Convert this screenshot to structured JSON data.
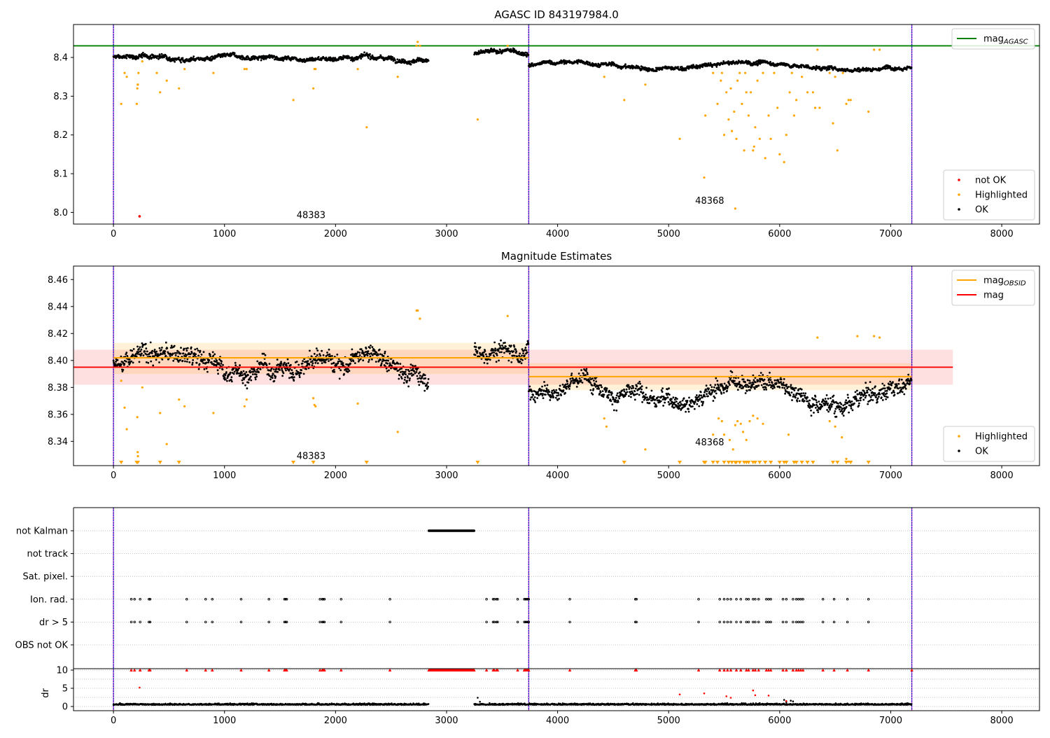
{
  "chart_data": [
    {
      "type": "scatter",
      "title": "AGASC ID 843197984.0",
      "xlim": [
        -360,
        8340
      ],
      "ylim": [
        7.97,
        8.485
      ],
      "xticks": [
        0,
        1000,
        2000,
        3000,
        4000,
        5000,
        6000,
        7000,
        8000
      ],
      "yticks": [
        8.0,
        8.1,
        8.2,
        8.3,
        8.4
      ],
      "obs_boundaries": [
        0,
        3740,
        7190
      ],
      "obsid_labels": [
        {
          "text": "48383",
          "x": 1870,
          "y": 7.985
        },
        {
          "text": "48368",
          "x": 5460,
          "y": 8.022
        }
      ],
      "hlines": [
        {
          "name": "mag_AGASC",
          "y": 8.43,
          "color": "#008000"
        }
      ],
      "segments": [
        {
          "x0": 0,
          "x1": 2840,
          "base": 8.4,
          "slope": 0.004,
          "jitter": 0.009
        },
        {
          "x0": 3250,
          "x1": 3740,
          "base": 8.41,
          "slope": 0.0,
          "jitter": 0.009
        },
        {
          "x0": 3740,
          "x1": 7190,
          "base": 8.378,
          "slope": 0.016,
          "jitter": 0.008
        }
      ],
      "highlighted": [
        [
          70,
          8.28
        ],
        [
          100,
          8.36
        ],
        [
          120,
          8.35
        ],
        [
          210,
          8.28
        ],
        [
          215,
          8.32
        ],
        [
          218,
          8.33
        ],
        [
          220,
          8.33
        ],
        [
          225,
          8.36
        ],
        [
          260,
          8.39
        ],
        [
          390,
          8.36
        ],
        [
          420,
          8.31
        ],
        [
          480,
          8.34
        ],
        [
          590,
          8.32
        ],
        [
          640,
          8.37
        ],
        [
          900,
          8.36
        ],
        [
          1180,
          8.37
        ],
        [
          1200,
          8.37
        ],
        [
          1620,
          8.29
        ],
        [
          1800,
          8.32
        ],
        [
          1810,
          8.37
        ],
        [
          1820,
          8.37
        ],
        [
          2200,
          8.37
        ],
        [
          2280,
          8.22
        ],
        [
          2560,
          8.35
        ],
        [
          2730,
          8.43
        ],
        [
          2740,
          8.44
        ],
        [
          2760,
          8.43
        ],
        [
          3280,
          8.24
        ],
        [
          3550,
          8.43
        ],
        [
          4420,
          8.35
        ],
        [
          4600,
          8.29
        ],
        [
          4790,
          8.33
        ],
        [
          5100,
          8.19
        ],
        [
          5320,
          8.09
        ],
        [
          5330,
          8.25
        ],
        [
          5400,
          8.36
        ],
        [
          5440,
          8.28
        ],
        [
          5470,
          8.34
        ],
        [
          5480,
          8.36
        ],
        [
          5500,
          8.2
        ],
        [
          5520,
          8.31
        ],
        [
          5540,
          8.24
        ],
        [
          5560,
          8.32
        ],
        [
          5570,
          8.21
        ],
        [
          5590,
          8.26
        ],
        [
          5600,
          8.01
        ],
        [
          5610,
          8.19
        ],
        [
          5620,
          8.34
        ],
        [
          5640,
          8.36
        ],
        [
          5660,
          8.28
        ],
        [
          5680,
          8.16
        ],
        [
          5690,
          8.36
        ],
        [
          5700,
          8.31
        ],
        [
          5720,
          8.25
        ],
        [
          5740,
          8.31
        ],
        [
          5760,
          8.16
        ],
        [
          5770,
          8.17
        ],
        [
          5780,
          8.22
        ],
        [
          5800,
          8.34
        ],
        [
          5820,
          8.19
        ],
        [
          5850,
          8.36
        ],
        [
          5870,
          8.14
        ],
        [
          5900,
          8.25
        ],
        [
          5920,
          8.19
        ],
        [
          5950,
          8.36
        ],
        [
          5980,
          8.27
        ],
        [
          6000,
          8.15
        ],
        [
          6040,
          8.13
        ],
        [
          6060,
          8.2
        ],
        [
          6090,
          8.31
        ],
        [
          6110,
          8.36
        ],
        [
          6130,
          8.25
        ],
        [
          6150,
          8.29
        ],
        [
          6200,
          8.35
        ],
        [
          6250,
          8.31
        ],
        [
          6300,
          8.31
        ],
        [
          6320,
          8.27
        ],
        [
          6340,
          8.42
        ],
        [
          6360,
          8.27
        ],
        [
          6450,
          8.36
        ],
        [
          6480,
          8.23
        ],
        [
          6500,
          8.35
        ],
        [
          6520,
          8.16
        ],
        [
          6570,
          8.36
        ],
        [
          6600,
          8.28
        ],
        [
          6620,
          8.29
        ],
        [
          6640,
          8.29
        ],
        [
          6800,
          8.26
        ],
        [
          6850,
          8.42
        ],
        [
          6900,
          8.42
        ]
      ],
      "not_ok": [
        [
          235,
          7.99
        ]
      ],
      "legends": [
        {
          "loc": "upper right",
          "entries": [
            {
              "label": "mag",
              "sub": "AGASC",
              "kind": "line",
              "color": "#008000"
            }
          ]
        },
        {
          "loc": "lower right",
          "entries": [
            {
              "label": "not OK",
              "kind": "dot",
              "color": "#ff0000"
            },
            {
              "label": "Highlighted",
              "kind": "dot",
              "color": "#ffa500"
            },
            {
              "label": "OK",
              "kind": "dot",
              "color": "#000000"
            }
          ]
        }
      ]
    },
    {
      "type": "scatter",
      "title": "Magnitude Estimates",
      "xlim": [
        -360,
        8340
      ],
      "ylim": [
        8.322,
        8.47
      ],
      "xticks": [
        0,
        1000,
        2000,
        3000,
        4000,
        5000,
        6000,
        7000,
        8000
      ],
      "yticks": [
        8.34,
        8.36,
        8.38,
        8.4,
        8.42,
        8.44,
        8.46
      ],
      "obs_boundaries": [
        0,
        3740,
        7190
      ],
      "obsid_labels": [
        {
          "text": "48383",
          "x": 1870,
          "y": 8.327
        },
        {
          "text": "48368",
          "x": 5460,
          "y": 8.337
        }
      ],
      "mag": {
        "value": 8.395,
        "band": [
          8.382,
          8.408
        ],
        "x0": -360,
        "x1": 7560,
        "color": "#ff0000"
      },
      "mag_obsid": [
        {
          "x0": 0,
          "x1": 3740,
          "value": 8.402,
          "band": [
            8.39,
            8.413
          ],
          "color": "#ffa500"
        },
        {
          "x0": 3740,
          "x1": 7190,
          "value": 8.388,
          "band": [
            8.378,
            8.398
          ],
          "color": "#ffa500"
        }
      ],
      "segments": [
        {
          "x0": 0,
          "x1": 2840,
          "base": 8.397,
          "slope": 0.012,
          "jitter": 0.011
        },
        {
          "x0": 3250,
          "x1": 3740,
          "base": 8.406,
          "slope": 0.004,
          "jitter": 0.011
        },
        {
          "x0": 3740,
          "x1": 7190,
          "base": 8.38,
          "slope": 0.018,
          "jitter": 0.01
        }
      ],
      "highlighted": [
        [
          70,
          8.385
        ],
        [
          100,
          8.365
        ],
        [
          120,
          8.349
        ],
        [
          215,
          8.358
        ],
        [
          218,
          8.332
        ],
        [
          220,
          8.329
        ],
        [
          260,
          8.38
        ],
        [
          420,
          8.361
        ],
        [
          480,
          8.338
        ],
        [
          590,
          8.371
        ],
        [
          640,
          8.366
        ],
        [
          900,
          8.361
        ],
        [
          1180,
          8.366
        ],
        [
          1200,
          8.371
        ],
        [
          1800,
          8.372
        ],
        [
          1810,
          8.367
        ],
        [
          1820,
          8.366
        ],
        [
          2200,
          8.368
        ],
        [
          2560,
          8.347
        ],
        [
          2730,
          8.437
        ],
        [
          2740,
          8.437
        ],
        [
          2760,
          8.431
        ],
        [
          3550,
          8.433
        ],
        [
          4420,
          8.357
        ],
        [
          4440,
          8.351
        ],
        [
          4790,
          8.334
        ],
        [
          5400,
          8.345
        ],
        [
          5450,
          8.357
        ],
        [
          5480,
          8.355
        ],
        [
          5500,
          8.345
        ],
        [
          5550,
          8.341
        ],
        [
          5580,
          8.334
        ],
        [
          5600,
          8.352
        ],
        [
          5620,
          8.355
        ],
        [
          5650,
          8.353
        ],
        [
          5670,
          8.347
        ],
        [
          5700,
          8.341
        ],
        [
          5730,
          8.355
        ],
        [
          5760,
          8.359
        ],
        [
          5800,
          8.357
        ],
        [
          5850,
          8.353
        ],
        [
          6080,
          8.345
        ],
        [
          6340,
          8.417
        ],
        [
          6450,
          8.355
        ],
        [
          6500,
          8.351
        ],
        [
          6560,
          8.343
        ],
        [
          6600,
          8.327
        ],
        [
          6620,
          8.325
        ],
        [
          6700,
          8.418
        ],
        [
          6850,
          8.418
        ],
        [
          6900,
          8.417
        ]
      ],
      "floor_markers": [
        70,
        210,
        220,
        420,
        590,
        1620,
        1800,
        2280,
        3280,
        4600,
        5100,
        5320,
        5330,
        5400,
        5440,
        5500,
        5540,
        5570,
        5600,
        5610,
        5640,
        5680,
        5700,
        5720,
        5760,
        5780,
        5820,
        5870,
        5920,
        6000,
        6040,
        6060,
        6130,
        6150,
        6200,
        6250,
        6300,
        6480,
        6520,
        6600,
        6640,
        6800
      ],
      "legends": [
        {
          "loc": "upper right",
          "entries": [
            {
              "label": "mag",
              "sub": "OBSID",
              "kind": "line",
              "color": "#ffa500"
            },
            {
              "label": "mag",
              "sub": "",
              "kind": "line",
              "color": "#ff0000"
            }
          ]
        },
        {
          "loc": "lower right",
          "entries": [
            {
              "label": "Highlighted",
              "kind": "dot",
              "color": "#ffa500"
            },
            {
              "label": "OK",
              "kind": "dot",
              "color": "#000000"
            }
          ]
        }
      ]
    },
    {
      "type": "scatter",
      "title": "",
      "xlim": [
        -360,
        8340
      ],
      "categories": [
        "not Kalman",
        "not track",
        "Sat. pixel.",
        "Ion. rad.",
        "dr > 5",
        "OBS not OK"
      ],
      "obs_boundaries": [
        0,
        3740,
        7190
      ],
      "flag_ranges": {
        "not Kalman": [
          [
            2840,
            3250
          ]
        ]
      },
      "flag_points": {
        "Ion. rad.": [
          160,
          190,
          240,
          320,
          330,
          660,
          830,
          890,
          1150,
          1400,
          1540,
          1550,
          1560,
          1860,
          1880,
          1890,
          1900,
          2050,
          2490,
          3360,
          3420,
          3430,
          3450,
          3460,
          3640,
          3700,
          3710,
          3720,
          3730,
          3740,
          4110,
          4700,
          4710,
          5270,
          5460,
          5500,
          5530,
          5560,
          5610,
          5650,
          5700,
          5720,
          5760,
          5780,
          5810,
          5880,
          5900,
          5920,
          6030,
          6060,
          6120,
          6150,
          6170,
          6190,
          6210,
          6390,
          6490,
          6610,
          6800
        ],
        "dr > 5": [
          160,
          190,
          240,
          320,
          330,
          660,
          830,
          890,
          1150,
          1400,
          1540,
          1550,
          1560,
          1860,
          1880,
          1890,
          1900,
          2050,
          2490,
          3360,
          3420,
          3430,
          3450,
          3460,
          3640,
          3700,
          3710,
          3720,
          3730,
          3740,
          4110,
          4700,
          4710,
          5270,
          5460,
          5500,
          5530,
          5560,
          5610,
          5650,
          5700,
          5720,
          5760,
          5780,
          5810,
          5880,
          5900,
          5920,
          6030,
          6060,
          6120,
          6150,
          6170,
          6190,
          6210,
          6390,
          6490,
          6610,
          6800
        ]
      }
    },
    {
      "type": "scatter",
      "title": "",
      "xlim": [
        -360,
        8340
      ],
      "ylim": [
        -0.5,
        10.5
      ],
      "ylabel": "dr",
      "yticks": [
        0,
        5,
        10
      ],
      "xticks": [
        0,
        1000,
        2000,
        3000,
        4000,
        5000,
        6000,
        7000,
        8000
      ],
      "obs_boundaries": [
        0,
        3740,
        7190
      ],
      "capped_value": 10,
      "segments": [
        {
          "x0": 0,
          "x1": 2840,
          "base": 0.45,
          "jitter": 0.35
        },
        {
          "x0": 3250,
          "x1": 3740,
          "base": 0.45,
          "jitter": 0.35
        },
        {
          "x0": 3740,
          "x1": 7190,
          "base": 0.45,
          "jitter": 0.35
        }
      ],
      "capped_x": [
        160,
        190,
        240,
        320,
        330,
        660,
        830,
        890,
        1150,
        1400,
        1540,
        1550,
        1560,
        1860,
        1880,
        1890,
        1900,
        2050,
        2490,
        3360,
        3420,
        3430,
        3450,
        3460,
        3640,
        3700,
        3710,
        3720,
        3730,
        3740,
        4110,
        4700,
        4710,
        5270,
        5460,
        5500,
        5530,
        5560,
        5610,
        5650,
        5700,
        5720,
        5760,
        5780,
        5810,
        5880,
        5900,
        5920,
        6030,
        6060,
        6120,
        6150,
        6170,
        6190,
        6210,
        6390,
        6490,
        6610,
        6800,
        7190
      ],
      "capped_range": [
        2840,
        3250
      ],
      "red_points": [
        [
          235,
          5.2
        ],
        [
          5100,
          3.3
        ],
        [
          5320,
          3.6
        ],
        [
          5520,
          2.8
        ],
        [
          5560,
          2.4
        ],
        [
          5760,
          4.4
        ],
        [
          5780,
          3.1
        ],
        [
          5900,
          3.0
        ],
        [
          6060,
          1.5
        ]
      ],
      "extra_points": [
        [
          3280,
          2.4
        ],
        [
          3300,
          1.3
        ],
        [
          6040,
          1.8
        ],
        [
          6060,
          1.2
        ],
        [
          6100,
          1.6
        ],
        [
          6120,
          1.4
        ]
      ]
    }
  ]
}
